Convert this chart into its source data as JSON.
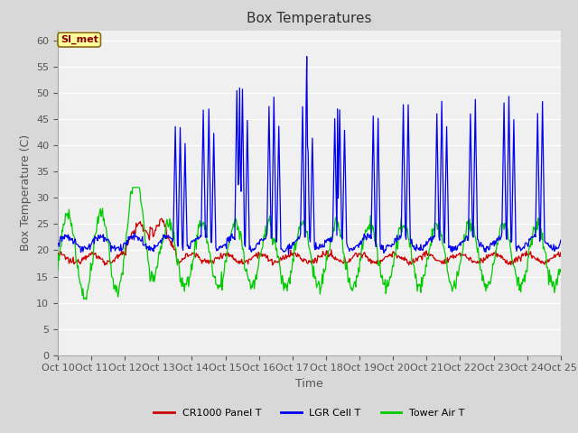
{
  "title": "Box Temperatures",
  "xlabel": "Time",
  "ylabel": "Box Temperature (C)",
  "ylim": [
    0,
    62
  ],
  "yticks": [
    0,
    5,
    10,
    15,
    20,
    25,
    30,
    35,
    40,
    45,
    50,
    55,
    60
  ],
  "xtick_labels": [
    "Oct 10",
    "Oct 11",
    "Oct 12",
    "Oct 13",
    "Oct 14",
    "Oct 15",
    "Oct 16",
    "Oct 17",
    "Oct 18",
    "Oct 19",
    "Oct 20",
    "Oct 21",
    "Oct 22",
    "Oct 23",
    "Oct 24",
    "Oct 25"
  ],
  "fig_bg_color": "#d8d8d8",
  "plot_bg_color": "#f0f0f0",
  "legend_label_red": "CR1000 Panel T",
  "legend_label_blue": "LGR Cell T",
  "legend_label_green": "Tower Air T",
  "annotation_text": "SI_met",
  "annotation_bg": "#ffff99",
  "annotation_border": "#8b6914",
  "annotation_text_color": "#8b0000",
  "line_colors": [
    "#cc0000",
    "#0000ee",
    "#00cc00"
  ],
  "title_fontsize": 11,
  "axis_label_fontsize": 9,
  "tick_fontsize": 8,
  "legend_fontsize": 8
}
